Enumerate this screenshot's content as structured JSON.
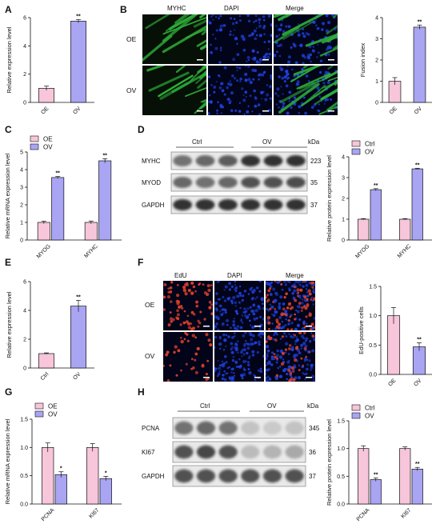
{
  "panels": [
    "A",
    "B",
    "C",
    "D",
    "E",
    "F",
    "G",
    "H"
  ],
  "colors": {
    "pink": "#f7c6da",
    "purple": "#a9a5f3",
    "fluor_green": "#2fae3a",
    "fluor_blue": "#1e3fd8",
    "fluor_red": "#d8402a",
    "blot_dark": "#151515"
  },
  "images": {
    "B": {
      "columns": [
        "MYHC",
        "DAPI",
        "Merge"
      ],
      "rows": [
        "OE",
        "OV"
      ],
      "channels": [
        "green",
        "blue",
        "merge-green"
      ]
    },
    "F": {
      "columns": [
        "EdU",
        "DAPI",
        "Merge"
      ],
      "rows": [
        "OE",
        "OV"
      ],
      "channels": [
        "red",
        "blue",
        "merge-red"
      ]
    }
  },
  "blots": {
    "D": {
      "groups": [
        "Ctrl",
        "OV"
      ],
      "unit": "kDa",
      "rows": [
        {
          "label": "MYHC",
          "kda": "223",
          "intensity": [
            0.55,
            0.6,
            0.65,
            0.85,
            0.85,
            0.85
          ]
        },
        {
          "label": "MYOD",
          "kda": "35",
          "intensity": [
            0.6,
            0.55,
            0.6,
            0.7,
            0.7,
            0.72
          ]
        },
        {
          "label": "GAPDH",
          "kda": "37",
          "intensity": [
            0.85,
            0.85,
            0.85,
            0.85,
            0.85,
            0.85
          ]
        }
      ]
    },
    "H": {
      "groups": [
        "Ctrl",
        "OV"
      ],
      "unit": "kDa",
      "rows": [
        {
          "label": "PCNA",
          "kda": "345",
          "intensity": [
            0.55,
            0.6,
            0.55,
            0.18,
            0.15,
            0.18
          ]
        },
        {
          "label": "KI67",
          "kda": "36",
          "intensity": [
            0.7,
            0.75,
            0.7,
            0.22,
            0.25,
            0.3
          ]
        },
        {
          "label": "GAPDH",
          "kda": "37",
          "intensity": [
            0.7,
            0.7,
            0.7,
            0.7,
            0.7,
            0.7
          ]
        }
      ]
    }
  },
  "chart_data": [
    {
      "panel": "A",
      "type": "bar",
      "categories": [
        "OE",
        "OV"
      ],
      "values": [
        1.0,
        5.75
      ],
      "errors": [
        0.15,
        0.12
      ],
      "significance": [
        "",
        "**"
      ],
      "ylabel": "Relative expression level",
      "ylim": [
        0,
        6
      ],
      "yticks": [
        0,
        2,
        4,
        6
      ]
    },
    {
      "panel": "B",
      "type": "bar",
      "categories": [
        "OE",
        "OV"
      ],
      "values": [
        1.0,
        3.55
      ],
      "errors": [
        0.17,
        0.1
      ],
      "significance": [
        "",
        "**"
      ],
      "ylabel": "Fusion index",
      "ylim": [
        0,
        4
      ],
      "yticks": [
        0,
        1,
        2,
        3,
        4
      ]
    },
    {
      "panel": "C",
      "type": "bar",
      "categories": [
        "MYOG",
        "MYHC"
      ],
      "series": [
        {
          "name": "OE",
          "values": [
            1.0,
            1.0
          ],
          "errors": [
            0.07,
            0.08
          ]
        },
        {
          "name": "OV",
          "values": [
            3.55,
            4.5
          ],
          "errors": [
            0.06,
            0.12
          ]
        }
      ],
      "significance": [
        "**",
        "**"
      ],
      "ylabel": "Relative mRNA expression level",
      "ylim": [
        0,
        5
      ],
      "yticks": [
        0,
        1,
        2,
        3,
        4,
        5
      ],
      "legend": "top-left"
    },
    {
      "panel": "D",
      "type": "bar",
      "categories": [
        "MYOG",
        "MYHC"
      ],
      "series": [
        {
          "name": "Ctrl",
          "values": [
            1.0,
            1.0
          ],
          "errors": [
            0.03,
            0.03
          ]
        },
        {
          "name": "OV",
          "values": [
            2.42,
            3.42
          ],
          "errors": [
            0.05,
            0.03
          ]
        }
      ],
      "significance": [
        "**",
        "**"
      ],
      "ylabel": "Relative protein expression level",
      "ylim": [
        0,
        4
      ],
      "yticks": [
        0,
        1,
        2,
        3,
        4
      ],
      "legend": "top-left"
    },
    {
      "panel": "E",
      "type": "bar",
      "categories": [
        "Ctrl",
        "OV"
      ],
      "values": [
        1.0,
        4.3
      ],
      "errors": [
        0.05,
        0.4
      ],
      "significance": [
        "",
        "**"
      ],
      "ylabel": "Relative expression level",
      "ylim": [
        0,
        6
      ],
      "yticks": [
        0,
        2,
        4,
        6
      ]
    },
    {
      "panel": "F",
      "type": "bar",
      "categories": [
        "OE",
        "OV"
      ],
      "values": [
        1.0,
        0.47
      ],
      "errors": [
        0.14,
        0.07
      ],
      "significance": [
        "",
        "**"
      ],
      "ylabel": "EdU-positive cells",
      "ylim": [
        0,
        1.5
      ],
      "yticks": [
        0,
        0.5,
        1.0,
        1.5
      ],
      "ytick_labels": [
        "0.0",
        "0.5",
        "1.0",
        "1.5"
      ]
    },
    {
      "panel": "G",
      "type": "bar",
      "categories": [
        "PCNA",
        "KI67"
      ],
      "series": [
        {
          "name": "OE",
          "values": [
            1.0,
            1.0
          ],
          "errors": [
            0.08,
            0.07
          ]
        },
        {
          "name": "OV",
          "values": [
            0.52,
            0.45
          ],
          "errors": [
            0.05,
            0.04
          ]
        }
      ],
      "significance": [
        "*",
        "*"
      ],
      "ylabel": "Relative mRNA expression level",
      "ylim": [
        0,
        1.5
      ],
      "yticks": [
        0,
        0.5,
        1.0,
        1.5
      ],
      "ytick_labels": [
        "0.0",
        "0.5",
        "1.0",
        "1.5"
      ],
      "legend": "top-left"
    },
    {
      "panel": "H",
      "type": "bar",
      "categories": [
        "PCNA",
        "KI67"
      ],
      "series": [
        {
          "name": "Ctrl",
          "values": [
            1.0,
            1.0
          ],
          "errors": [
            0.05,
            0.03
          ]
        },
        {
          "name": "OV",
          "values": [
            0.44,
            0.63
          ],
          "errors": [
            0.03,
            0.03
          ]
        }
      ],
      "significance": [
        "**",
        "**"
      ],
      "ylabel": "Relative protein expression level",
      "ylim": [
        0,
        1.5
      ],
      "yticks": [
        0,
        0.5,
        1.0,
        1.5
      ],
      "ytick_labels": [
        "0.0",
        "0.5",
        "1.0",
        "1.5"
      ],
      "legend": "top-left"
    }
  ]
}
